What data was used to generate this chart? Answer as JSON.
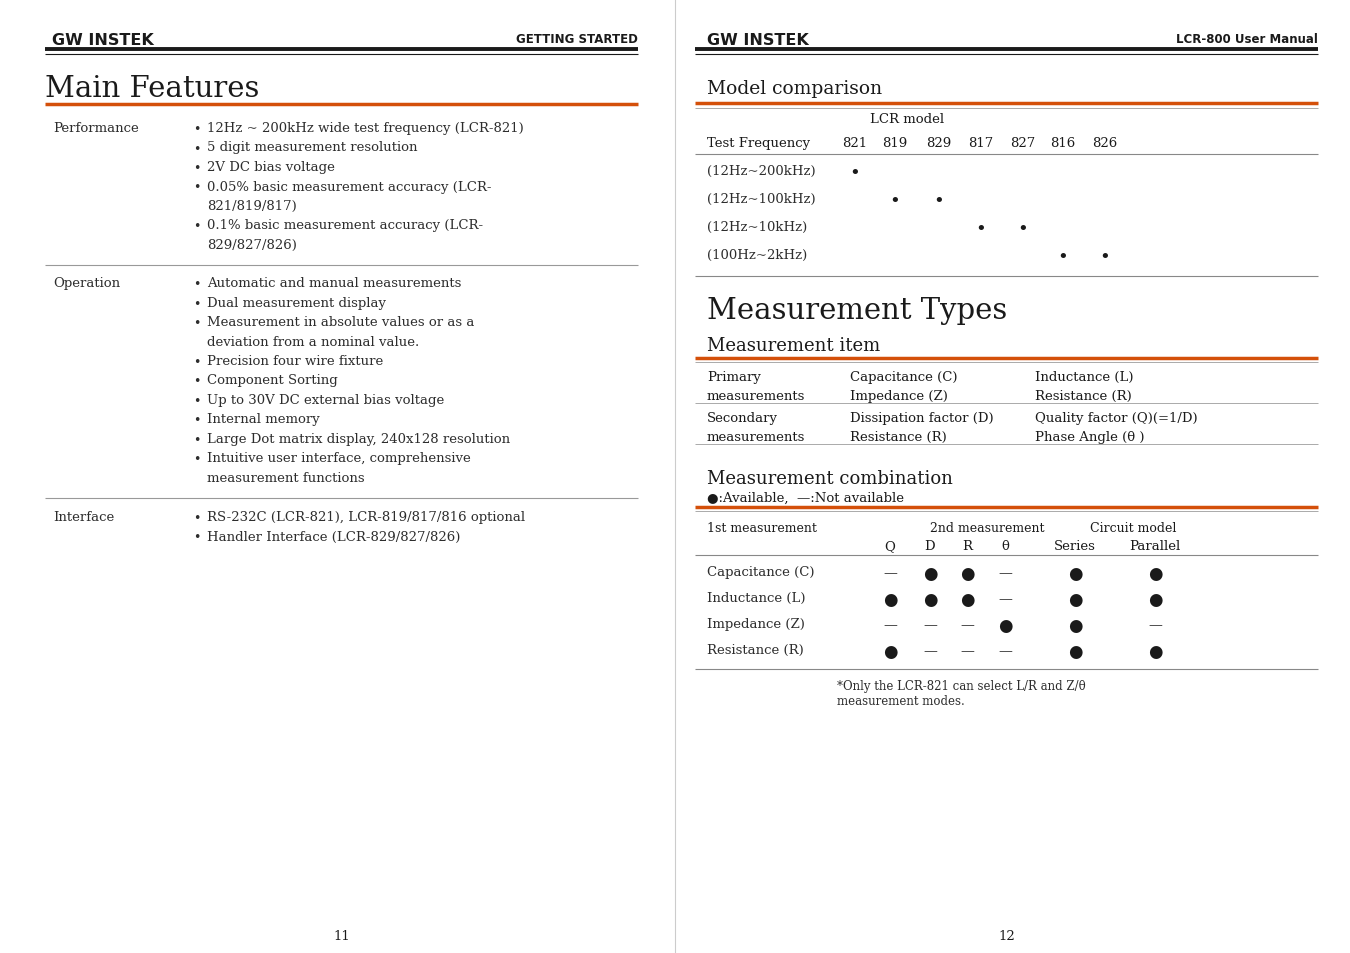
{
  "bg_color": "#ffffff",
  "left_header_logo": "GW INSTEK",
  "left_header_right": "GETTING STARTED",
  "right_header_logo": "GW INSTEK",
  "right_header_right": "LCR-800 User Manual",
  "left_title": "Main Features",
  "left_sections": [
    {
      "label": "Performance",
      "items": [
        "12Hz ~ 200kHz wide test frequency (LCR-821)",
        "5 digit measurement resolution",
        "2V DC bias voltage",
        "0.05% basic measurement accuracy (LCR-\n821/819/817)",
        "0.1% basic measurement accuracy (LCR-\n829/827/826)"
      ]
    },
    {
      "label": "Operation",
      "items": [
        "Automatic and manual measurements",
        "Dual measurement display",
        "Measurement in absolute values or as a\ndeviation from a nominal value.",
        "Precision four wire fixture",
        "Component Sorting",
        "Up to 30V DC external bias voltage",
        "Internal memory",
        "Large Dot matrix display, 240x128 resolution",
        "Intuitive user interface, comprehensive\nmeasurement functions"
      ]
    },
    {
      "label": "Interface",
      "items": [
        "RS-232C (LCR-821), LCR-819/817/816 optional",
        "Handler Interface (LCR-829/827/826)"
      ]
    }
  ],
  "right_title": "Measurement Types",
  "model_comparison_title": "Model comparison",
  "lcr_model_label": "LCR model",
  "model_headers": [
    "Test Frequency",
    "821",
    "819",
    "829",
    "817",
    "827",
    "816",
    "826"
  ],
  "model_rows": [
    {
      "label": "(12Hz~200kHz)",
      "dots": [
        true,
        false,
        false,
        false,
        false,
        false,
        false
      ]
    },
    {
      "label": "(12Hz~100kHz)",
      "dots": [
        false,
        true,
        true,
        false,
        false,
        false,
        false
      ]
    },
    {
      "label": "(12Hz~10kHz)",
      "dots": [
        false,
        false,
        false,
        true,
        true,
        false,
        false
      ]
    },
    {
      "label": "(100Hz~2kHz)",
      "dots": [
        false,
        false,
        false,
        false,
        false,
        true,
        true
      ]
    }
  ],
  "measurement_item_title": "Measurement item",
  "primary_items": [
    [
      "Capacitance (C)",
      "Inductance (L)"
    ],
    [
      "Impedance (Z)",
      "Resistance (R)"
    ]
  ],
  "secondary_items": [
    [
      "Dissipation factor (D)",
      "Quality factor (Q)(=1/D)"
    ],
    [
      "Resistance (R)",
      "Phase Angle (θ )"
    ]
  ],
  "measurement_combination_title": "Measurement combination",
  "avail_legend": "●:Available,  —:Not available",
  "combo_rows": [
    {
      "label": "Capacitance (C)",
      "q": false,
      "d": true,
      "r": true,
      "theta": false,
      "series": true,
      "parallel": true
    },
    {
      "label": "Inductance (L)",
      "q": true,
      "d": true,
      "r": true,
      "theta": false,
      "series": true,
      "parallel": true
    },
    {
      "label": "Impedance (Z)",
      "q": false,
      "d": false,
      "r": false,
      "theta": true,
      "series": true,
      "parallel": false
    },
    {
      "label": "Resistance (R)",
      "q": true,
      "d": false,
      "r": false,
      "theta": false,
      "series": true,
      "parallel": true
    }
  ],
  "combo_note": "*Only the LCR-821 can select L/R and Z/θ\nmeasurement modes.",
  "page_left": "11",
  "page_right": "12",
  "orange_color": "#d4500a",
  "dark_color": "#1a1a1a",
  "text_color": "#2d2d2d"
}
